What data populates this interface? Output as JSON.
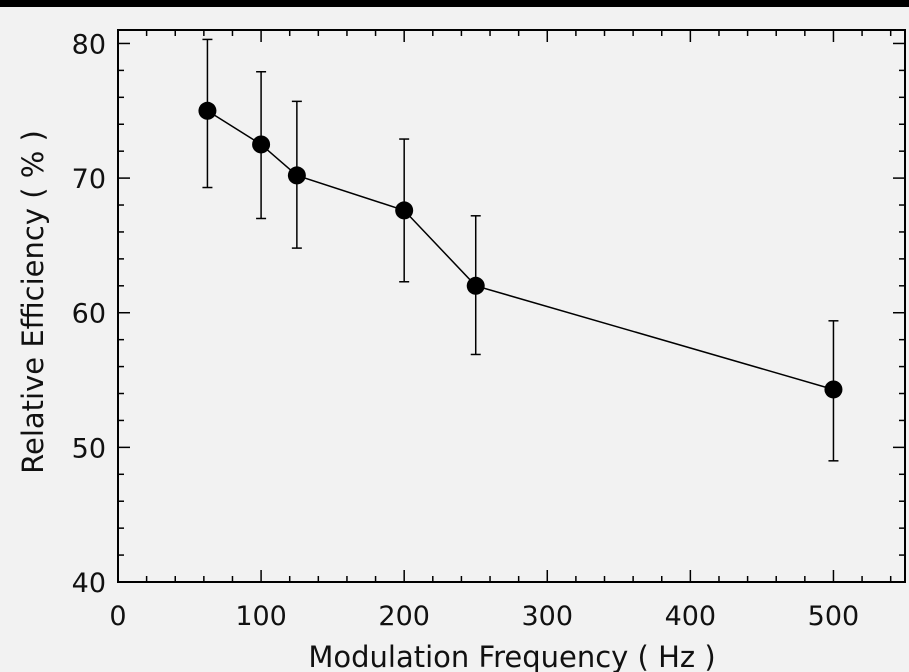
{
  "chart_data": {
    "type": "line",
    "title": "",
    "xlabel": "Modulation Frequency ( Hz )",
    "ylabel": "Relative Efficiency ( % )",
    "xlim": [
      0,
      550
    ],
    "ylim": [
      40,
      81
    ],
    "x_ticks": [
      0,
      100,
      200,
      300,
      400,
      500
    ],
    "y_ticks": [
      40,
      50,
      60,
      70,
      80
    ],
    "grid": false,
    "legend": "none",
    "series": [
      {
        "x": [
          62.5,
          100,
          125,
          200,
          250,
          500
        ],
        "y": [
          75.0,
          72.5,
          70.2,
          67.6,
          62.0,
          54.3
        ],
        "err_low": [
          69.3,
          67.0,
          64.8,
          62.3,
          56.9,
          49.0
        ],
        "err_high": [
          80.3,
          77.9,
          75.7,
          72.9,
          67.2,
          59.4
        ]
      }
    ]
  }
}
